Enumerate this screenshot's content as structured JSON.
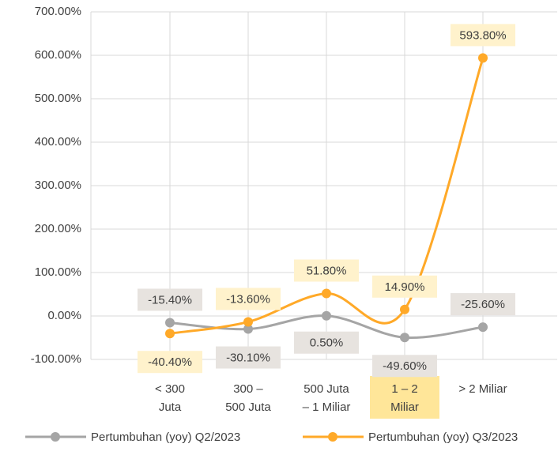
{
  "chart_data": {
    "type": "line",
    "categories": [
      [
        "< 300",
        "Juta"
      ],
      [
        "300 –",
        "500  Juta"
      ],
      [
        "500 Juta",
        "– 1 Miliar"
      ],
      [
        "1 – 2",
        "Miliar"
      ],
      [
        "> 2 Miliar"
      ]
    ],
    "series": [
      {
        "name": "Pertumbuhan (yoy) Q2/2023",
        "color": "#a5a5a5",
        "values": [
          -15.4,
          -30.1,
          0.5,
          -49.6,
          -25.6
        ],
        "value_labels": [
          "-15.40%",
          "-30.10%",
          "0.50%",
          "-49.60%",
          "-25.60%"
        ]
      },
      {
        "name": "Pertumbuhan (yoy) Q3/2023",
        "color": "#ffa928",
        "values": [
          -40.4,
          -13.6,
          51.8,
          14.9,
          593.8
        ],
        "value_labels": [
          "-40.40%",
          "-13.60%",
          "51.80%",
          "14.90%",
          "593.80%"
        ]
      }
    ],
    "ylim": [
      -100,
      700
    ],
    "yticks": [
      {
        "value": -100,
        "label": "-100.00%"
      },
      {
        "value": 0,
        "label": "0.00%"
      },
      {
        "value": 100,
        "label": "100.00%"
      },
      {
        "value": 200,
        "label": "200.00%"
      },
      {
        "value": 300,
        "label": "300.00%"
      },
      {
        "value": 400,
        "label": "400.00%"
      },
      {
        "value": 500,
        "label": "500.00%"
      },
      {
        "value": 600,
        "label": "600.00%"
      },
      {
        "value": 700,
        "label": "700.00%"
      }
    ],
    "grid": true,
    "legend": "bottom"
  }
}
